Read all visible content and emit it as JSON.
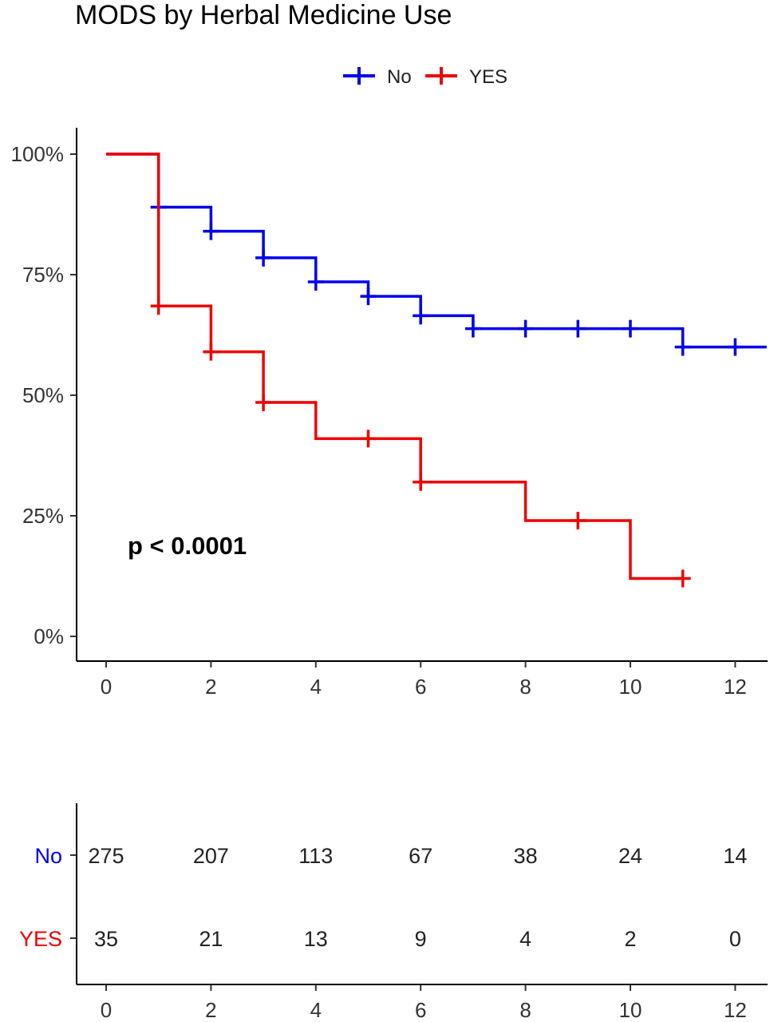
{
  "chart_data": {
    "type": "line",
    "title": "MODS by Herbal Medicine Use",
    "xlabel": "",
    "ylabel": "",
    "xlim": [
      -0.6,
      12.6
    ],
    "ylim": [
      -0.05,
      1.05
    ],
    "x_ticks": [
      "0",
      "2",
      "4",
      "6",
      "8",
      "10",
      "12"
    ],
    "y_ticks": [
      "0%",
      "25%",
      "50%",
      "75%",
      "100%"
    ],
    "y_tick_values": [
      0,
      0.25,
      0.5,
      0.75,
      1.0
    ],
    "grid": false,
    "legend_position": "top",
    "annotation": "p < 0.0001",
    "series": [
      {
        "name": "No",
        "color": "#0000ee",
        "steps": [
          [
            0,
            1.0
          ],
          [
            1,
            0.89
          ],
          [
            2,
            0.84
          ],
          [
            3,
            0.785
          ],
          [
            4,
            0.735
          ],
          [
            5,
            0.705
          ],
          [
            6,
            0.665
          ],
          [
            7,
            0.638
          ],
          [
            11,
            0.6
          ],
          [
            12.6,
            0.6
          ]
        ],
        "censor_x": [
          1,
          2,
          3,
          4,
          5,
          6,
          7,
          8,
          9,
          10,
          11,
          12
        ]
      },
      {
        "name": "YES",
        "color": "#ee0000",
        "steps": [
          [
            0,
            1.0
          ],
          [
            1,
            0.685
          ],
          [
            2,
            0.59
          ],
          [
            3,
            0.485
          ],
          [
            4,
            0.41
          ],
          [
            6,
            0.32
          ],
          [
            8,
            0.24
          ],
          [
            10,
            0.12
          ],
          [
            11,
            0.12
          ]
        ],
        "censor_x": [
          1,
          2,
          3,
          5,
          6,
          9,
          11
        ]
      }
    ],
    "risk_table": {
      "x_ticks": [
        "0",
        "2",
        "4",
        "6",
        "8",
        "10",
        "12"
      ],
      "rows": [
        {
          "label": "No",
          "color": "#0000ee",
          "values": [
            "275",
            "207",
            "113",
            "67",
            "38",
            "24",
            "14"
          ]
        },
        {
          "label": "YES",
          "color": "#ee0000",
          "values": [
            "35",
            "21",
            "13",
            "9",
            "4",
            "2",
            "0"
          ]
        }
      ]
    }
  }
}
